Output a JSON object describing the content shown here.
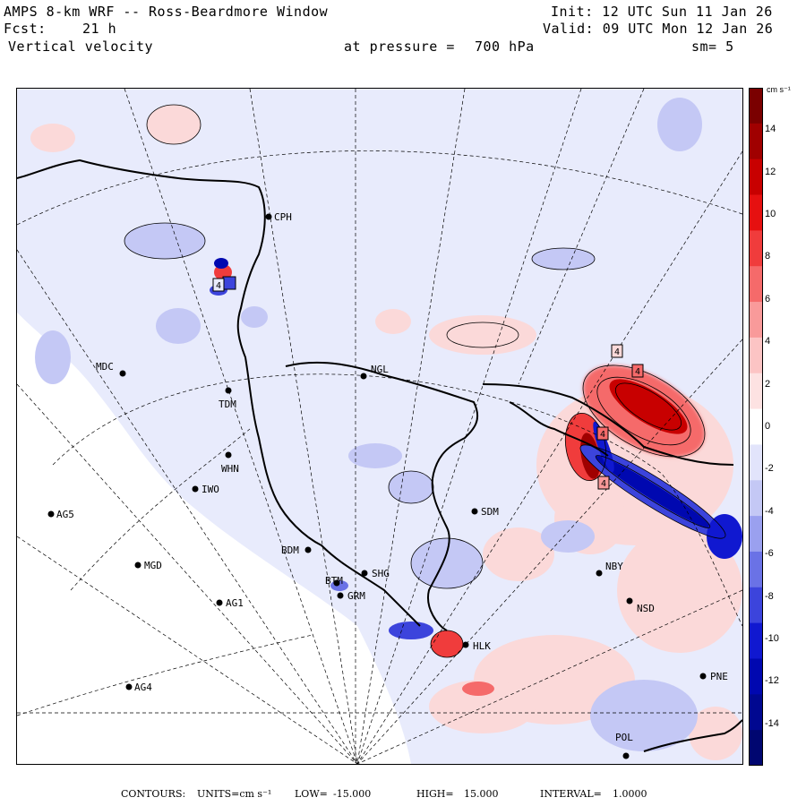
{
  "header": {
    "title": "AMPS 8-km WRF -- Ross-Beardmore Window",
    "init": "Init: 12 UTC Sun 11 Jan 26",
    "fcst_label": "Fcst:",
    "fcst_value": "21 h",
    "valid": "Valid: 09 UTC Mon 12 Jan 26",
    "field": "Vertical velocity",
    "pressure_label": "at pressure =",
    "pressure_value": "700 hPa",
    "smoothing": "sm= 5"
  },
  "colorbar": {
    "unit": "cm s⁻¹",
    "ticks": [
      "14",
      "12",
      "10",
      "8",
      "6",
      "4",
      "2",
      "0",
      "-2",
      "-4",
      "-6",
      "-8",
      "-10",
      "-12",
      "-14"
    ],
    "colors": [
      "#7a0000",
      "#a00000",
      "#c80000",
      "#e61010",
      "#f03c3c",
      "#f56a6a",
      "#f99a9a",
      "#fcc4c4",
      "#fde2e2",
      "#ffffff",
      "#e2e4fb",
      "#c4c8f5",
      "#9aa0ef",
      "#6a72e6",
      "#3c44dc",
      "#1018d0",
      "#0008b0",
      "#000890",
      "#000670"
    ]
  },
  "stations": [
    {
      "id": "CPH",
      "label": "CPH"
    },
    {
      "id": "MDC",
      "label": "MDC"
    },
    {
      "id": "NGL",
      "label": "NGL"
    },
    {
      "id": "TDM",
      "label": "TDM"
    },
    {
      "id": "WHN",
      "label": "WHN"
    },
    {
      "id": "IWO",
      "label": "IWO"
    },
    {
      "id": "AG5",
      "label": "AG5"
    },
    {
      "id": "SDM",
      "label": "SDM"
    },
    {
      "id": "BDM",
      "label": "BDM"
    },
    {
      "id": "MGD",
      "label": "MGD"
    },
    {
      "id": "SHG",
      "label": "SHG"
    },
    {
      "id": "BTM",
      "label": "BTM"
    },
    {
      "id": "GRM",
      "label": "GRM"
    },
    {
      "id": "AG1",
      "label": "AG1"
    },
    {
      "id": "NBY",
      "label": "NBY"
    },
    {
      "id": "NSD",
      "label": "NSD"
    },
    {
      "id": "HLK",
      "label": "HLK"
    },
    {
      "id": "PNE",
      "label": "PNE"
    },
    {
      "id": "AG4",
      "label": "AG4"
    },
    {
      "id": "POL",
      "label": "POL"
    }
  ],
  "contour_labels": [
    "4",
    "4",
    "4",
    "4",
    "4"
  ],
  "footer": {
    "contours_label": "CONTOURS:",
    "units_label": "UNITS=cm s⁻¹",
    "low_label": "LOW=",
    "low_value": "-15.000",
    "high_label": "HIGH=",
    "high_value": "15.000",
    "interval_label": "INTERVAL=",
    "interval_value": "1.0000"
  }
}
